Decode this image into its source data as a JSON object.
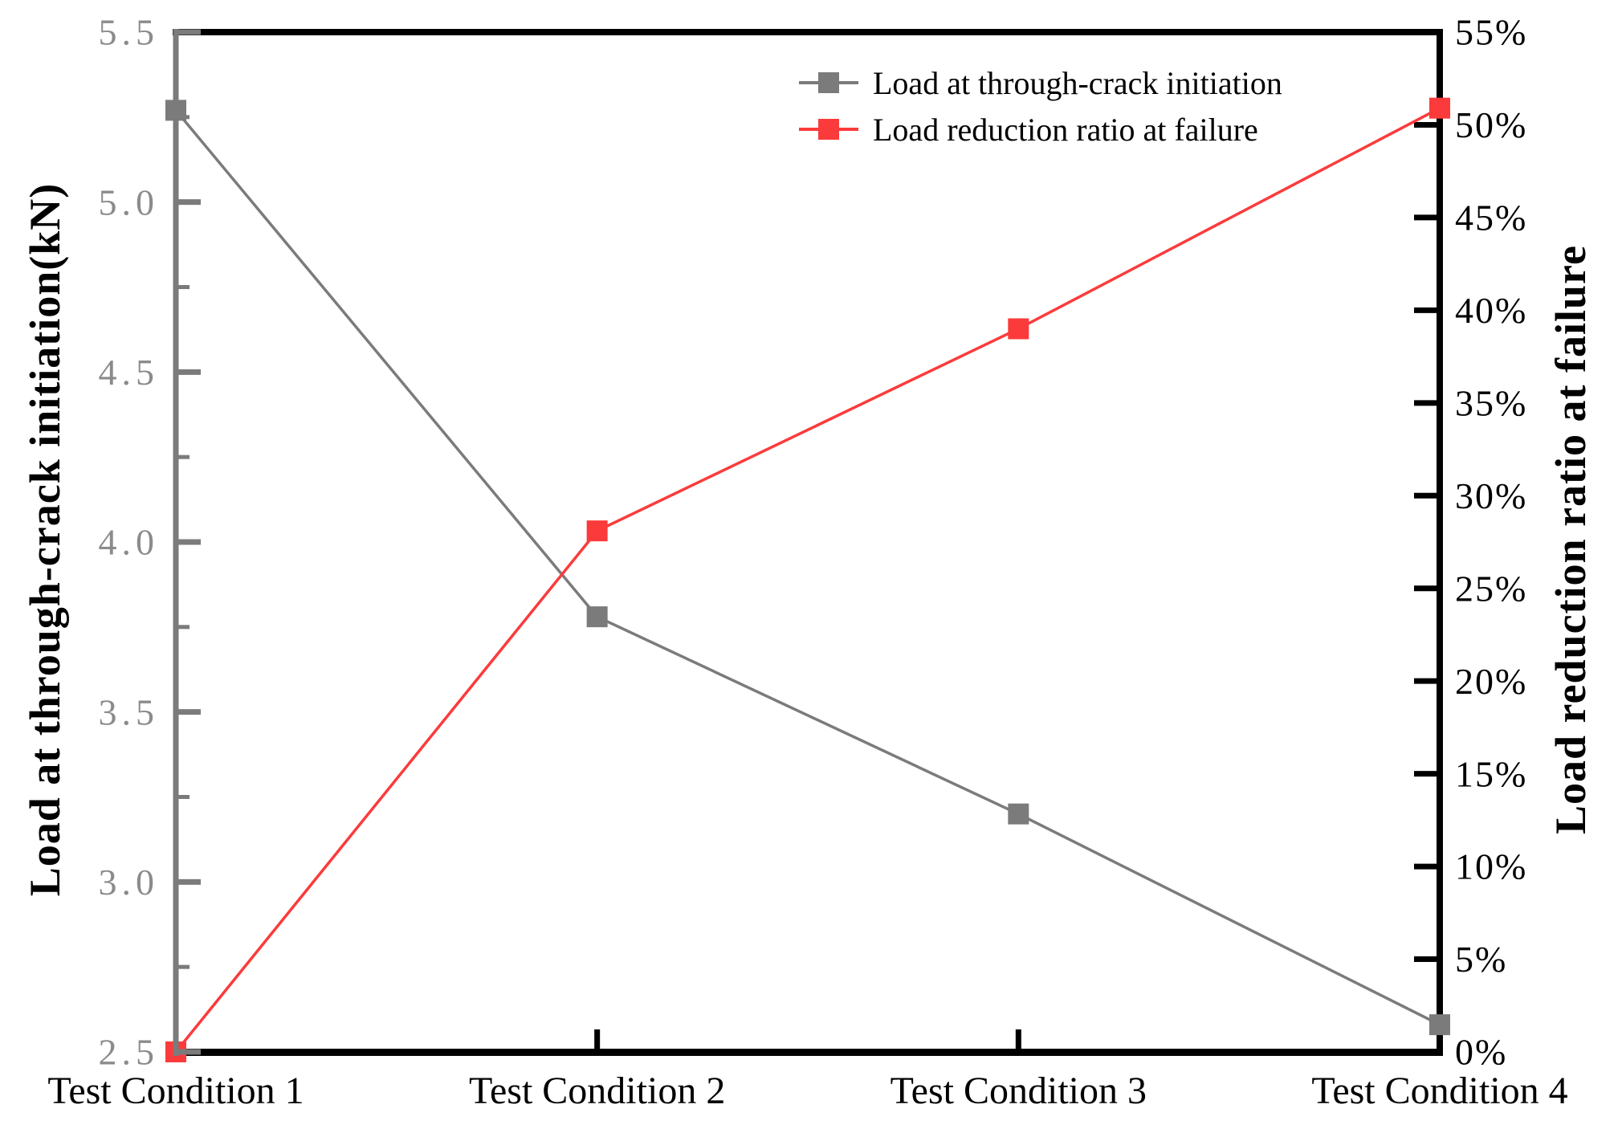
{
  "chart_data": {
    "type": "line",
    "categories": [
      "Test Condition 1",
      "Test Condition 2",
      "Test Condition 3",
      "Test Condition 4"
    ],
    "series": [
      {
        "name": "Load at through-crack initiation",
        "axis": "left",
        "color": "#7b7b7b",
        "marker": "square",
        "values": [
          5.27,
          3.78,
          3.2,
          2.58
        ]
      },
      {
        "name": "Load reduction ratio at failure",
        "axis": "right",
        "color": "#fb3b3b",
        "marker": "square",
        "values": [
          0,
          28.1,
          39.0,
          50.9
        ]
      }
    ],
    "left_axis": {
      "label": "Load at through-crack initiation(kN)",
      "min": 2.5,
      "max": 5.5,
      "major_step": 0.5,
      "minor_step": 0.25,
      "tick_labels": [
        "2.5",
        "3.0",
        "3.5",
        "4.0",
        "4.5",
        "5.0",
        "5.5"
      ],
      "axis_color": "#7b7b7b",
      "label_color": "#8b8b8b"
    },
    "right_axis": {
      "label": "Load reduction ratio at failure",
      "min": 0,
      "max": 55,
      "major_step": 5,
      "tick_labels": [
        "0%",
        "5%",
        "10%",
        "15%",
        "20%",
        "25%",
        "30%",
        "35%",
        "40%",
        "45%",
        "50%",
        "55%"
      ],
      "axis_color": "#000000",
      "label_color": "#000000"
    },
    "x_axis": {
      "axis_color": "#000000",
      "label_color": "#000000"
    },
    "legend": {
      "position": "top-right",
      "entries": [
        "Load at through-crack initiation",
        "Load reduction ratio at failure"
      ]
    },
    "grid": false,
    "background": "#ffffff"
  }
}
